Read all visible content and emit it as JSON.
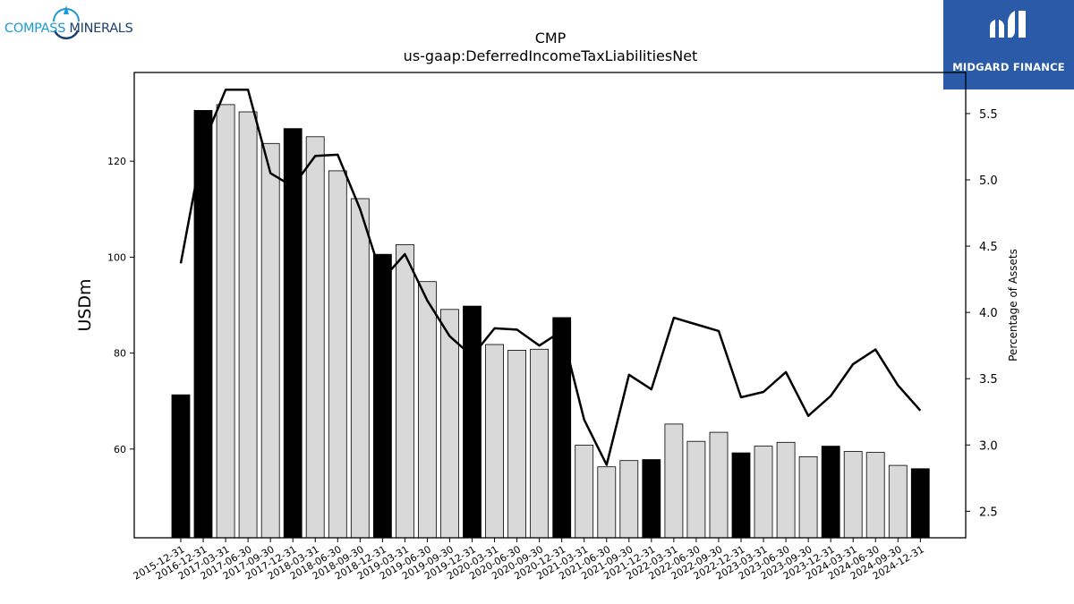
{
  "logos": {
    "left_part1": "COMPASS",
    "left_part2": "MINERALS",
    "right_text": "MIDGARD FINANCE"
  },
  "colors": {
    "bar_highlight": "#000000",
    "bar_normal": "#d9d9d9",
    "line": "#000000",
    "brand_blue": "#2a5aa8",
    "compass_blue": "#1a9ad6",
    "compass_navy": "#1b3f73"
  },
  "chart_data": {
    "type": "bar",
    "title": "CMP",
    "subtitle": "us-gaap:DeferredIncomeTaxLiabilitiesNet",
    "ylabel": "USDm",
    "y2label": "Percentage of Assets",
    "ylim": [
      41.5,
      138.5
    ],
    "y2lim": [
      2.3,
      5.81
    ],
    "yticks": [
      60,
      80,
      100,
      120
    ],
    "y2ticks": [
      2.5,
      3.0,
      3.5,
      4.0,
      4.5,
      5.0,
      5.5
    ],
    "categories": [
      "2015-12-31",
      "2016-12-31",
      "2017-03-31",
      "2017-06-30",
      "2017-09-30",
      "2017-12-31",
      "2018-03-31",
      "2018-06-30",
      "2018-09-30",
      "2018-12-31",
      "2019-03-31",
      "2019-06-30",
      "2019-09-30",
      "2019-12-31",
      "2020-03-31",
      "2020-06-30",
      "2020-09-30",
      "2020-12-31",
      "2021-03-31",
      "2021-06-30",
      "2021-09-30",
      "2021-12-31",
      "2022-03-31",
      "2022-06-30",
      "2022-09-30",
      "2022-12-31",
      "2023-03-31",
      "2023-06-30",
      "2023-09-30",
      "2023-12-31",
      "2024-03-31",
      "2024-06-30",
      "2024-09-30",
      "2024-12-31"
    ],
    "series": [
      {
        "kind": "bar",
        "values": [
          71.3,
          130.6,
          131.8,
          130.3,
          123.7,
          126.8,
          125.1,
          118.0,
          112.2,
          100.6,
          102.6,
          94.9,
          89.1,
          89.8,
          81.8,
          80.6,
          80.8,
          87.4,
          60.8,
          56.3,
          57.6,
          57.8,
          65.2,
          61.6,
          63.5,
          59.2,
          60.6,
          61.4,
          58.4,
          60.6,
          59.5,
          59.3,
          56.6,
          55.9
        ],
        "highlight": [
          true,
          true,
          false,
          false,
          false,
          true,
          false,
          false,
          false,
          true,
          false,
          false,
          false,
          true,
          false,
          false,
          false,
          true,
          false,
          false,
          false,
          true,
          false,
          false,
          false,
          true,
          false,
          false,
          false,
          true,
          false,
          false,
          false,
          true
        ]
      },
      {
        "kind": "line",
        "axis": "right",
        "values": [
          4.37,
          5.27,
          5.68,
          5.68,
          5.05,
          4.95,
          5.18,
          5.19,
          4.78,
          4.25,
          4.44,
          4.09,
          3.82,
          3.67,
          3.88,
          3.87,
          3.75,
          3.86,
          3.19,
          2.85,
          3.53,
          3.42,
          3.96,
          3.91,
          3.86,
          3.36,
          3.4,
          3.55,
          3.22,
          3.37,
          3.61,
          3.72,
          3.45,
          3.26
        ]
      }
    ],
    "grid": false,
    "legend": "none"
  }
}
